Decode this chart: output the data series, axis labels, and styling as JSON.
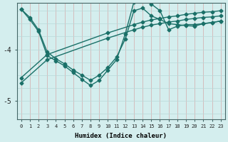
{
  "xlabel": "Humidex (Indice chaleur)",
  "bg_color": "#d4eeee",
  "line_color": "#1a7068",
  "grid_v_color": "#d4aaaa",
  "grid_h_color": "#b8d8d8",
  "xlim": [
    -0.5,
    23.5
  ],
  "ylim": [
    -5.35,
    -3.1
  ],
  "yticks": [
    -5,
    -4
  ],
  "ytick_labels": [
    "-5",
    "-4"
  ],
  "xticks": [
    0,
    1,
    2,
    3,
    4,
    5,
    6,
    7,
    8,
    9,
    10,
    11,
    12,
    13,
    14,
    15,
    16,
    17,
    18,
    19,
    20,
    21,
    22,
    23
  ],
  "series": [
    {
      "x": [
        0,
        3,
        10,
        13,
        14,
        15,
        16,
        17,
        18,
        19,
        20,
        21,
        22,
        23
      ],
      "y": [
        -4.55,
        -4.1,
        -3.68,
        -3.52,
        -3.47,
        -3.43,
        -3.4,
        -3.37,
        -3.35,
        -3.32,
        -3.3,
        -3.28,
        -3.27,
        -3.25
      ]
    },
    {
      "x": [
        0,
        3,
        10,
        13,
        14,
        15,
        16,
        17,
        18,
        19,
        20,
        21,
        22,
        23
      ],
      "y": [
        -4.65,
        -4.2,
        -3.78,
        -3.62,
        -3.57,
        -3.53,
        -3.5,
        -3.47,
        -3.45,
        -3.42,
        -3.4,
        -3.38,
        -3.37,
        -3.35
      ]
    },
    {
      "x": [
        0,
        1,
        2,
        3,
        4,
        5,
        6,
        7,
        8,
        9,
        10,
        11,
        12,
        13,
        14,
        15,
        16,
        17,
        18,
        19,
        20,
        21,
        22,
        23
      ],
      "y": [
        -3.22,
        -3.38,
        -3.62,
        -4.05,
        -4.18,
        -4.28,
        -4.4,
        -4.5,
        -4.6,
        -4.5,
        -4.35,
        -4.15,
        -3.8,
        -3.25,
        -3.2,
        -3.35,
        -3.42,
        -3.5,
        -3.52,
        -3.54,
        -3.55,
        -3.5,
        -3.48,
        -3.45
      ]
    },
    {
      "x": [
        0,
        1,
        2,
        3,
        4,
        5,
        6,
        7,
        8,
        9,
        10,
        11,
        12,
        13,
        14,
        15,
        16,
        17,
        18,
        19,
        20,
        21,
        22,
        23
      ],
      "y": [
        -3.22,
        -3.42,
        -3.65,
        -4.12,
        -4.22,
        -4.32,
        -4.45,
        -4.58,
        -4.7,
        -4.6,
        -4.4,
        -4.2,
        -3.7,
        -3.08,
        -3.05,
        -3.12,
        -3.25,
        -3.62,
        -3.55,
        -3.52,
        -3.52,
        -3.5,
        -3.48,
        -3.45
      ]
    }
  ],
  "marker": "D",
  "markersize": 2.5,
  "linewidth": 1.0
}
